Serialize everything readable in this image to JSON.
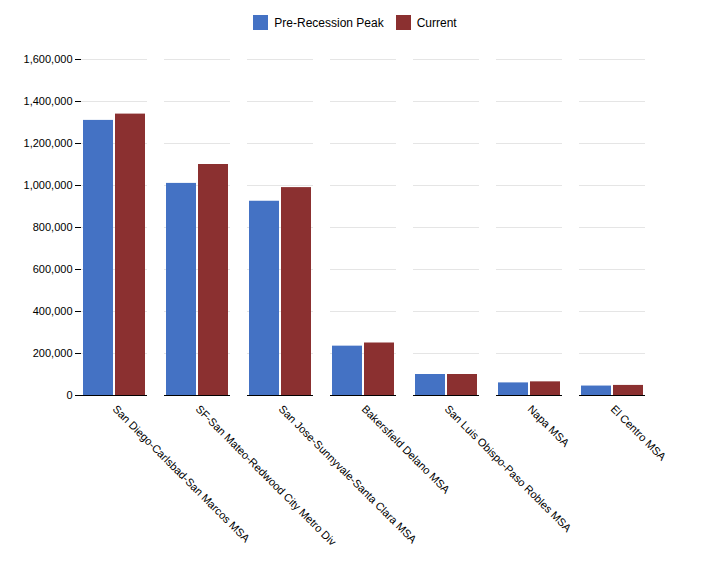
{
  "chart_data": {
    "type": "bar",
    "categories": [
      "San Diego-Carlsbad-San Marcos MSA",
      "SF-San Mateo-Redwood City Metro Div",
      "San Jose-Sunnyvale-Santa Clara MSA",
      "Bakersfield Delano MSA",
      "San Luis Obispo-Paso Robles MSA",
      "Napa MSA",
      "El Centro MSA"
    ],
    "series": [
      {
        "name": "Pre-Recession Peak",
        "color": "#4472C4",
        "values": [
          1310000,
          1010000,
          925000,
          235000,
          100000,
          60000,
          45000
        ]
      },
      {
        "name": "Current",
        "color": "#8B3030",
        "values": [
          1340000,
          1100000,
          990000,
          250000,
          100000,
          65000,
          48000
        ]
      }
    ],
    "ylim": [
      0,
      1600000
    ],
    "yticks": [
      0,
      {
        "value": 200000,
        "label": "200,000"
      },
      {
        "value": 400000,
        "label": "400,000"
      },
      {
        "value": 600000,
        "label": "600,000"
      },
      {
        "value": 800000,
        "label": "800,000"
      },
      {
        "value": 1000000,
        "label": "1,000,000"
      },
      {
        "value": 1200000,
        "label": "1,200,000"
      },
      {
        "value": 1400000,
        "label": "1,400,000"
      },
      {
        "value": 1600000,
        "label": "1,600,000"
      }
    ],
    "grid": true,
    "legend": "top"
  }
}
